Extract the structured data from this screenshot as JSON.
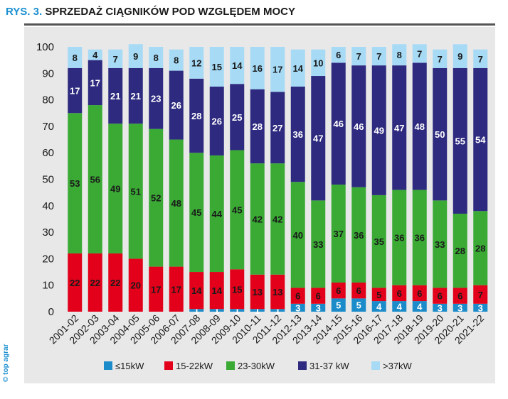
{
  "header": {
    "prefix": "RYS. 3.",
    "title": "SPRZEDAŻ CIĄGNIKÓW POD WZGLĘDEM MOCY"
  },
  "copyright": "© top agrar",
  "chart_data": {
    "type": "bar",
    "stacked": true,
    "ylim": [
      0,
      100
    ],
    "yticks": [
      0,
      10,
      20,
      30,
      40,
      50,
      60,
      70,
      80,
      90,
      100
    ],
    "grid": false,
    "legend_position": "bottom",
    "categories": [
      "2001-02",
      "2002-03",
      "2003-04",
      "2004-05",
      "2005-06",
      "2006-07",
      "2007-08",
      "2008-09",
      "2009-10",
      "2010-11",
      "2011-12",
      "2012-13",
      "2013-14",
      "2014-15",
      "2015-16",
      "2016-17",
      "2017-18",
      "2018-19",
      "2019-20",
      "2020-21",
      "2021-22"
    ],
    "series": [
      {
        "name": "≤15kW",
        "color": "#1b8cc9",
        "values": [
          0,
          0,
          0,
          0,
          0,
          0,
          1,
          1,
          1,
          1,
          1,
          3,
          3,
          5,
          5,
          4,
          4,
          4,
          3,
          3,
          3
        ]
      },
      {
        "name": "15-22kW",
        "color": "#e2001a",
        "values": [
          22,
          22,
          22,
          20,
          17,
          17,
          14,
          14,
          15,
          13,
          13,
          6,
          6,
          6,
          6,
          5,
          6,
          6,
          6,
          6,
          7
        ]
      },
      {
        "name": "23-30kW",
        "color": "#3aaa35",
        "values": [
          53,
          56,
          49,
          51,
          52,
          48,
          45,
          44,
          45,
          42,
          42,
          40,
          33,
          37,
          36,
          35,
          36,
          36,
          33,
          28,
          28
        ]
      },
      {
        "name": "31-37 kW",
        "color": "#2e2a7f",
        "values": [
          17,
          17,
          21,
          21,
          23,
          26,
          28,
          26,
          25,
          28,
          27,
          36,
          47,
          46,
          46,
          49,
          47,
          48,
          50,
          55,
          54
        ]
      },
      {
        "name": ">37kW",
        "color": "#a6daf5",
        "values": [
          8,
          4,
          7,
          9,
          8,
          8,
          12,
          15,
          14,
          16,
          17,
          14,
          10,
          6,
          7,
          7,
          8,
          7,
          7,
          9,
          7
        ]
      }
    ]
  }
}
